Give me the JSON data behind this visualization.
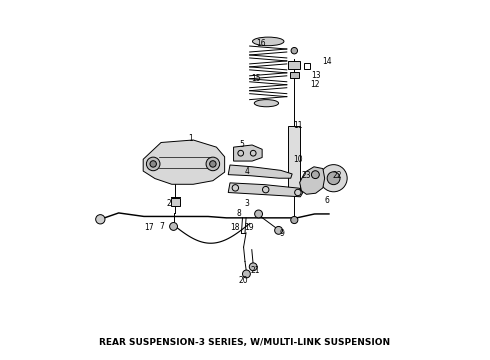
{
  "title": "REAR SUSPENSION-3 SERIES, W/MULTI-LINK SUSPENSION",
  "title_fontsize": 6.5,
  "background_color": "#ffffff",
  "line_color": "#000000",
  "fig_width": 4.9,
  "fig_height": 3.6,
  "dpi": 100
}
